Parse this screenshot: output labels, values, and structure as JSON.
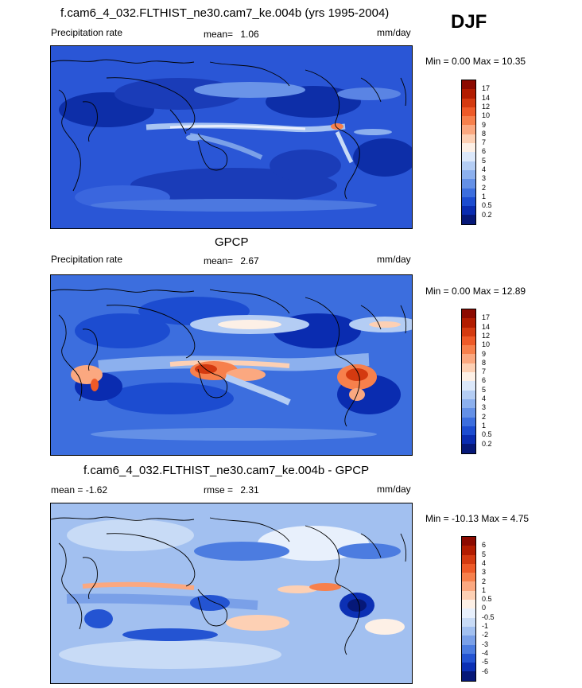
{
  "season": "DJF",
  "units_label": "mm/day",
  "panels": [
    {
      "id": "model",
      "title": "f.cam6_4_032.FLTHIST_ne30.cam7_ke.004b (yrs 1995-2004)",
      "left_label": "Precipitation rate",
      "stat_label": "mean=",
      "stat_value": "1.06",
      "right_label": "mm/day",
      "minmax": "Min =   0.00 Max =  10.35",
      "colorbar": {
        "labels": [
          "17",
          "14",
          "12",
          "10",
          "9",
          "8",
          "7",
          "6",
          "5",
          "4",
          "3",
          "2",
          "1",
          "0.5",
          "0.2"
        ],
        "colors": [
          "#8c0a00",
          "#b21c00",
          "#d43a10",
          "#ee5a28",
          "#f7804c",
          "#fba880",
          "#fdd0b4",
          "#fdf0e6",
          "#dce8fa",
          "#b4cdf4",
          "#8cb0ee",
          "#6490e6",
          "#3c6ede",
          "#1c4cd0",
          "#0a2cb0",
          "#061878"
        ]
      }
    },
    {
      "id": "obs",
      "title": "GPCP",
      "left_label": "Precipitation rate",
      "stat_label": "mean=",
      "stat_value": "2.67",
      "right_label": "mm/day",
      "minmax": "Min =   0.00 Max =  12.89",
      "colorbar": {
        "labels": [
          "17",
          "14",
          "12",
          "10",
          "9",
          "8",
          "7",
          "6",
          "5",
          "4",
          "3",
          "2",
          "1",
          "0.5",
          "0.2"
        ],
        "colors": [
          "#8c0a00",
          "#b21c00",
          "#d43a10",
          "#ee5a28",
          "#f7804c",
          "#fba880",
          "#fdd0b4",
          "#fdf0e6",
          "#dce8fa",
          "#b4cdf4",
          "#8cb0ee",
          "#6490e6",
          "#3c6ede",
          "#1c4cd0",
          "#0a2cb0",
          "#061878"
        ]
      }
    },
    {
      "id": "diff",
      "title": "f.cam6_4_032.FLTHIST_ne30.cam7_ke.004b - GPCP",
      "left_label": "mean =  -1.62",
      "stat_label": "rmse =",
      "stat_value": "2.31",
      "right_label": "mm/day",
      "minmax": "Min = -10.13 Max =   4.75",
      "colorbar": {
        "labels": [
          "6",
          "5",
          "4",
          "3",
          "2",
          "1",
          "0.5",
          "0",
          "-0.5",
          "-1",
          "-2",
          "-3",
          "-4",
          "-5",
          "-6"
        ],
        "colors": [
          "#8c0a00",
          "#b21c00",
          "#d43a10",
          "#ee5a28",
          "#f7804c",
          "#fba880",
          "#fdd0b4",
          "#fdf0e6",
          "#e8f0fc",
          "#c8dbf6",
          "#a2c0f0",
          "#7aa0e8",
          "#4c7ce0",
          "#2454d2",
          "#0c30b4",
          "#061878"
        ]
      }
    }
  ]
}
